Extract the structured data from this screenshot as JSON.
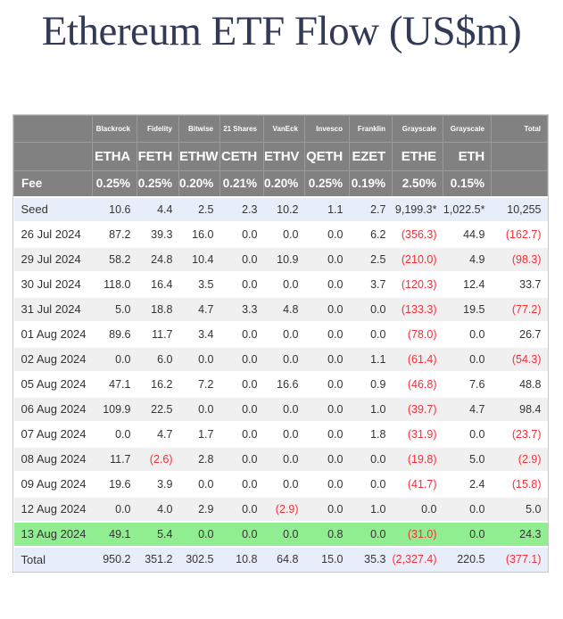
{
  "chart_data": {
    "type": "table",
    "title": "Ethereum ETF Flow (US$m)",
    "column_groups": {
      "issuers": [
        "Blackrock",
        "Fidelity",
        "Bitwise",
        "21 Shares",
        "VanEck",
        "Invesco",
        "Franklin",
        "Grayscale",
        "Grayscale"
      ],
      "tickers": [
        "ETHA",
        "FETH",
        "ETHW",
        "CETH",
        "ETHV",
        "QETH",
        "EZET",
        "ETHE",
        "ETH"
      ],
      "fee_row_label": "Fee",
      "fees": [
        "0.25%",
        "0.25%",
        "0.20%",
        "0.21%",
        "0.20%",
        "0.25%",
        "0.19%",
        "2.50%",
        "0.15%"
      ],
      "total_column_label": "Total"
    },
    "rows": [
      {
        "label": "Seed",
        "bg": "blue",
        "values": [
          "10.6",
          "4.4",
          "2.5",
          "2.3",
          "10.2",
          "1.1",
          "2.7",
          "9,199.3*",
          "1,022.5*",
          "10,255"
        ]
      },
      {
        "label": "26 Jul 2024",
        "bg": "white",
        "values": [
          "87.2",
          "39.3",
          "16.0",
          "0.0",
          "0.0",
          "0.0",
          "6.2",
          "(356.3)",
          "44.9",
          "(162.7)"
        ]
      },
      {
        "label": "29 Jul 2024",
        "bg": "gray",
        "values": [
          "58.2",
          "24.8",
          "10.4",
          "0.0",
          "10.9",
          "0.0",
          "2.5",
          "(210.0)",
          "4.9",
          "(98.3)"
        ]
      },
      {
        "label": "30 Jul 2024",
        "bg": "white",
        "values": [
          "118.0",
          "16.4",
          "3.5",
          "0.0",
          "0.0",
          "0.0",
          "3.7",
          "(120.3)",
          "12.4",
          "33.7"
        ]
      },
      {
        "label": "31 Jul 2024",
        "bg": "gray",
        "values": [
          "5.0",
          "18.8",
          "4.7",
          "3.3",
          "4.8",
          "0.0",
          "0.0",
          "(133.3)",
          "19.5",
          "(77.2)"
        ]
      },
      {
        "label": "01 Aug 2024",
        "bg": "white",
        "values": [
          "89.6",
          "11.7",
          "3.4",
          "0.0",
          "0.0",
          "0.0",
          "0.0",
          "(78.0)",
          "0.0",
          "26.7"
        ]
      },
      {
        "label": "02 Aug 2024",
        "bg": "gray",
        "values": [
          "0.0",
          "6.0",
          "0.0",
          "0.0",
          "0.0",
          "0.0",
          "1.1",
          "(61.4)",
          "0.0",
          "(54.3)"
        ]
      },
      {
        "label": "05 Aug 2024",
        "bg": "white",
        "values": [
          "47.1",
          "16.2",
          "7.2",
          "0.0",
          "16.6",
          "0.0",
          "0.9",
          "(46.8)",
          "7.6",
          "48.8"
        ]
      },
      {
        "label": "06 Aug 2024",
        "bg": "gray",
        "values": [
          "109.9",
          "22.5",
          "0.0",
          "0.0",
          "0.0",
          "0.0",
          "1.0",
          "(39.7)",
          "4.7",
          "98.4"
        ]
      },
      {
        "label": "07 Aug 2024",
        "bg": "white",
        "values": [
          "0.0",
          "4.7",
          "1.7",
          "0.0",
          "0.0",
          "0.0",
          "1.8",
          "(31.9)",
          "0.0",
          "(23.7)"
        ]
      },
      {
        "label": "08 Aug 2024",
        "bg": "gray",
        "values": [
          "11.7",
          "(2.6)",
          "2.8",
          "0.0",
          "0.0",
          "0.0",
          "0.0",
          "(19.8)",
          "5.0",
          "(2.9)"
        ]
      },
      {
        "label": "09 Aug 2024",
        "bg": "white",
        "values": [
          "19.6",
          "3.9",
          "0.0",
          "0.0",
          "0.0",
          "0.0",
          "0.0",
          "(41.7)",
          "2.4",
          "(15.8)"
        ]
      },
      {
        "label": "12 Aug 2024",
        "bg": "gray",
        "values": [
          "0.0",
          "4.0",
          "2.9",
          "0.0",
          "(2.9)",
          "0.0",
          "1.0",
          "0.0",
          "0.0",
          "5.0"
        ]
      },
      {
        "label": "13 Aug 2024",
        "bg": "green",
        "values": [
          "49.1",
          "5.4",
          "0.0",
          "0.0",
          "0.0",
          "0.8",
          "0.0",
          "(31.0)",
          "0.0",
          "24.3"
        ]
      },
      {
        "label": "Total",
        "bg": "blue",
        "values": [
          "950.2",
          "351.2",
          "302.5",
          "10.8",
          "64.8",
          "15.0",
          "35.3",
          "(2,327.4)",
          "220.5",
          "(377.1)"
        ]
      }
    ],
    "layout_hints": {
      "negative_format": "parentheses",
      "highlight_row": "13 Aug 2024",
      "footnote_marker": "*"
    },
    "colors": {
      "header_bg": "#818181",
      "stripe_bg": "#f0f0f0",
      "subtotal_bg": "#e8eef9",
      "highlight_bg": "#90ee90",
      "negative_text": "#fb2c36",
      "title_text": "#333a56"
    }
  }
}
